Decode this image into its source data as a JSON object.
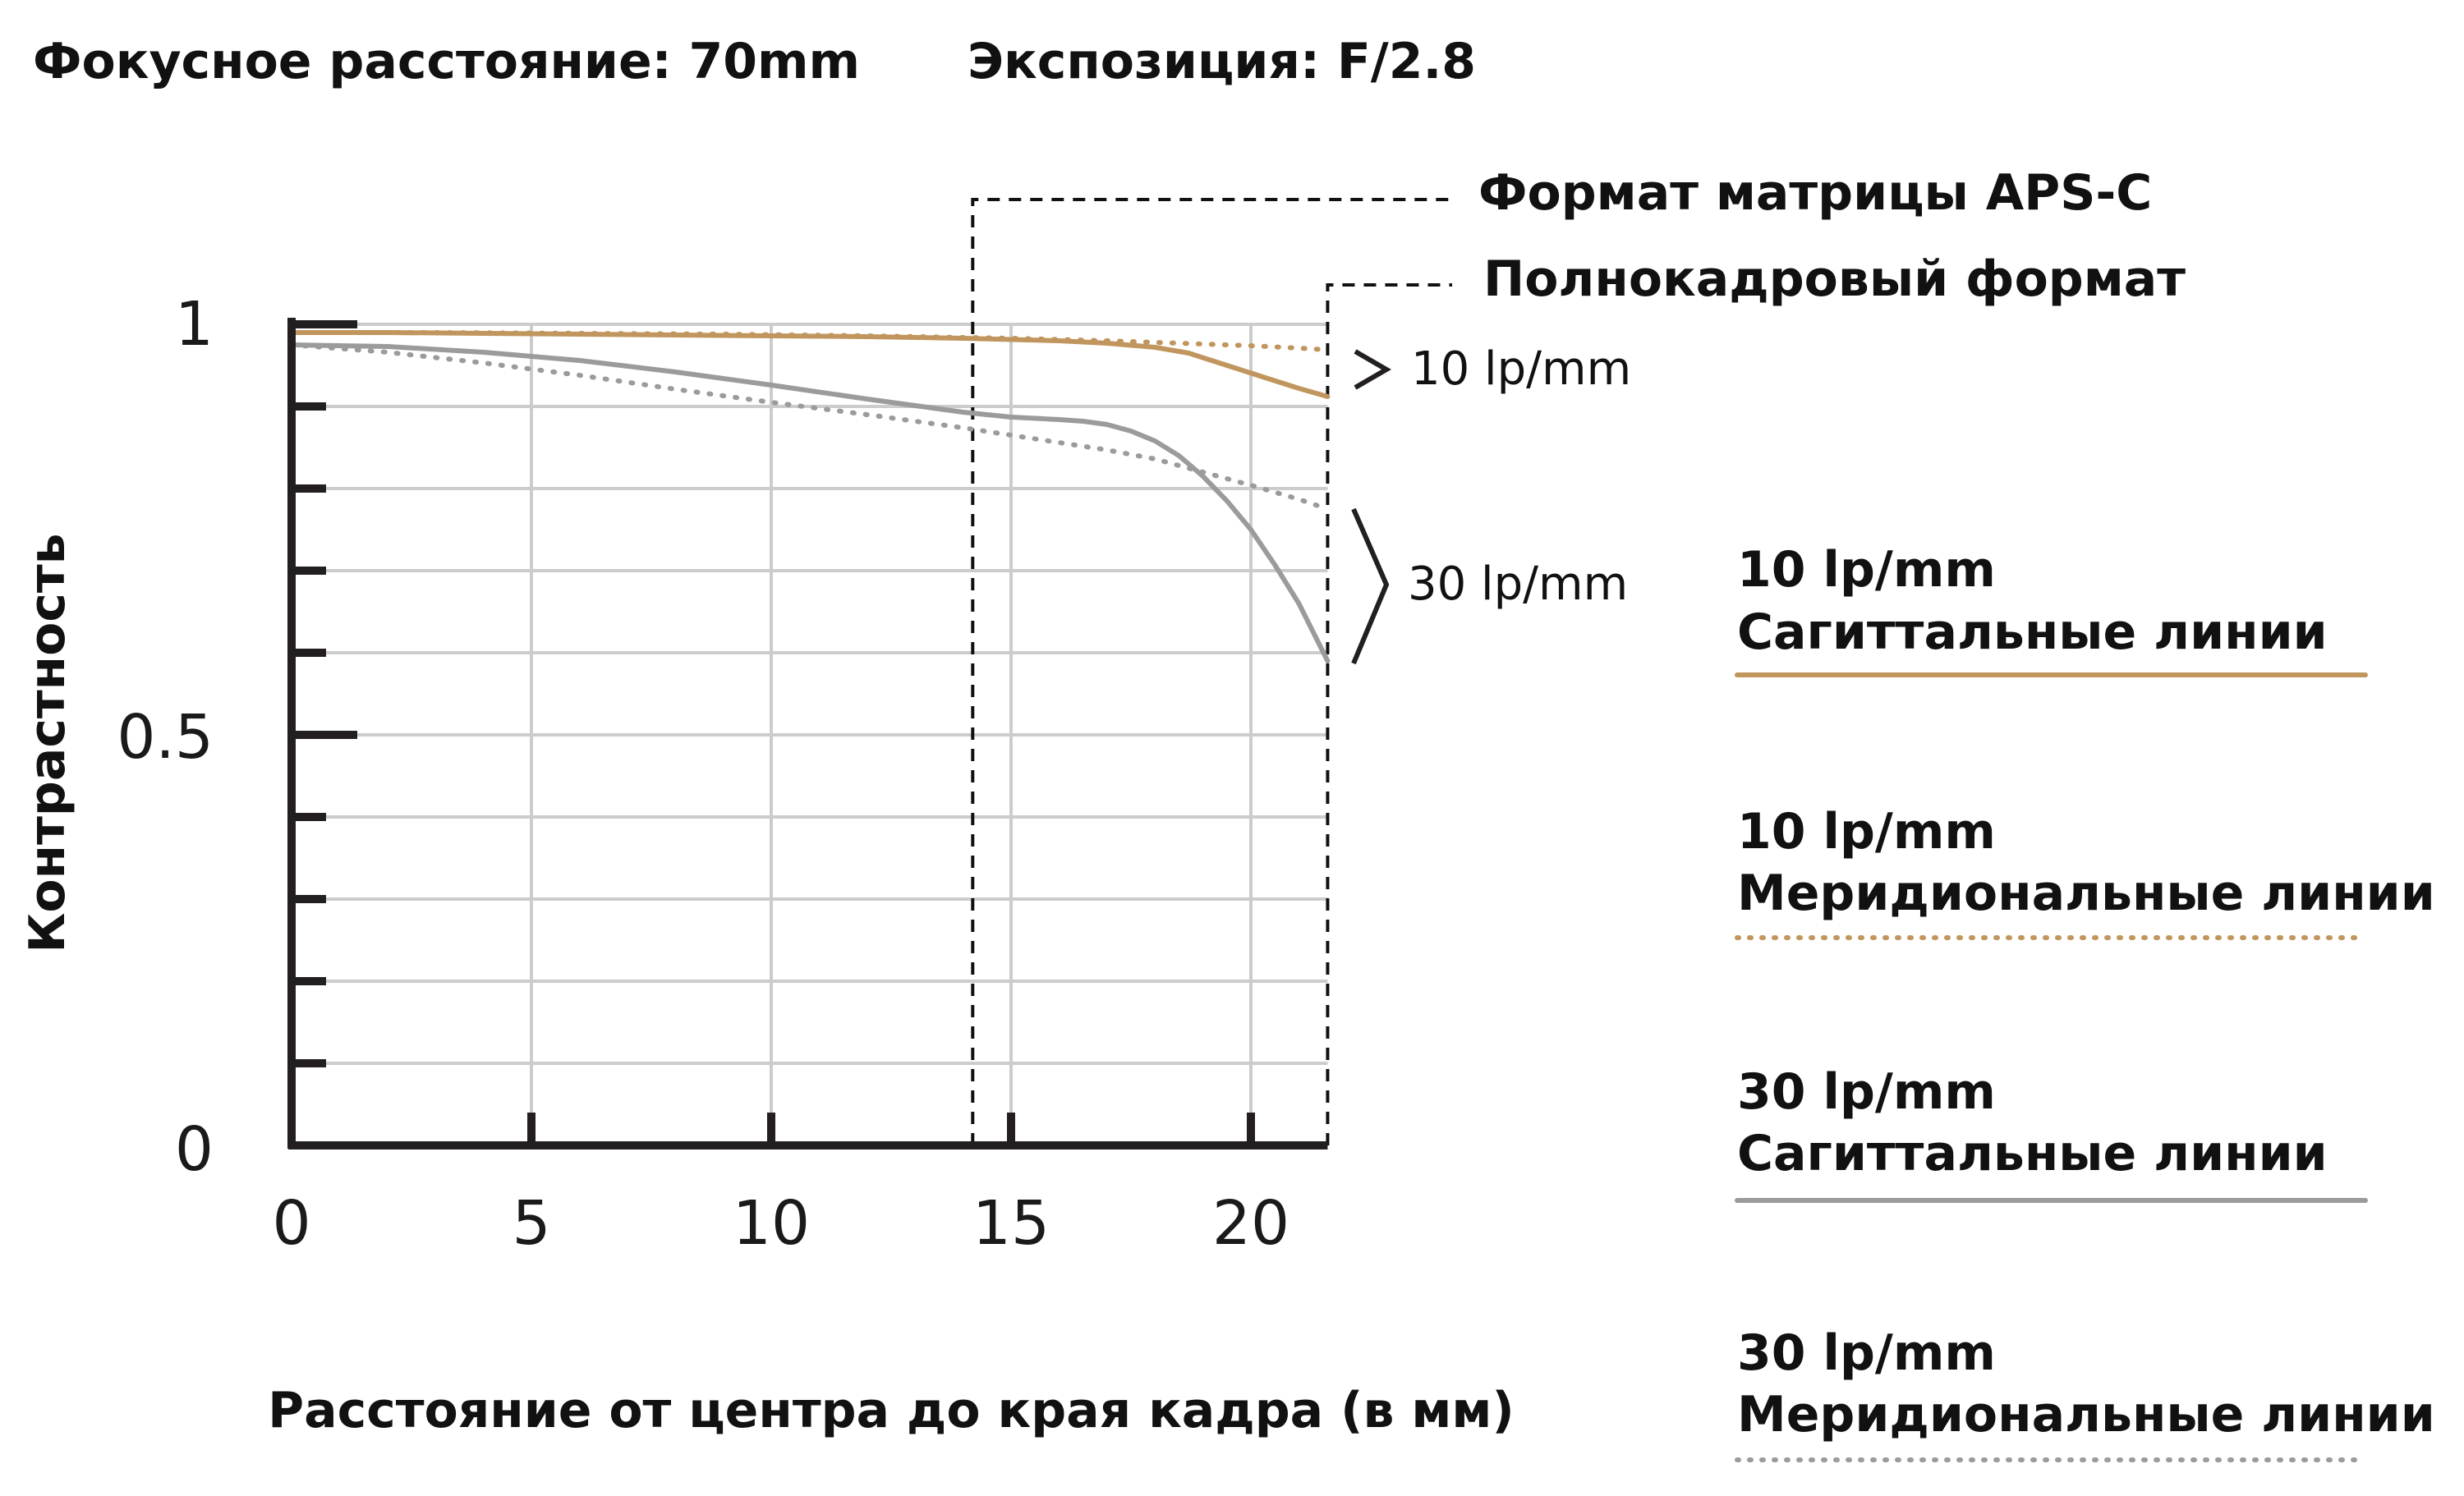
{
  "header": {
    "focal": "Фокусное расстояние: 70mm",
    "aperture": "Экспозиция: F/2.8"
  },
  "chart_data": {
    "type": "line",
    "xlabel": "Расстояние от центра до края кадра (в мм)",
    "ylabel": "Контрастность",
    "xlim": [
      0,
      21.6
    ],
    "ylim": [
      0,
      1
    ],
    "x_ticks": [
      "0",
      "5",
      "10",
      "15",
      "20"
    ],
    "y_ticks": [
      "0",
      "0.5",
      "1"
    ],
    "grid": true,
    "format_markers": [
      {
        "label": "Формат матрицы APS-C",
        "x": 14.2
      },
      {
        "label": "Полнокадровый формат",
        "x": 21.6
      }
    ],
    "frequency_labels": [
      "10 lp/mm",
      "30 lp/mm"
    ],
    "series": [
      {
        "name": "10 lp/mm Сагиттальные линии",
        "color": "#c0965e",
        "style": "solid",
        "x": [
          0,
          2,
          4,
          6,
          8,
          10,
          12,
          14,
          16,
          17,
          18,
          18.7,
          19.5,
          20.3,
          21,
          21.6
        ],
        "y": [
          0.99,
          0.99,
          0.989,
          0.988,
          0.987,
          0.986,
          0.985,
          0.983,
          0.98,
          0.977,
          0.972,
          0.965,
          0.95,
          0.935,
          0.922,
          0.912
        ]
      },
      {
        "name": "10 lp/mm Меридиональные линии",
        "color": "#c0965e",
        "style": "dotted",
        "x": [
          0,
          3,
          6,
          9,
          12,
          15,
          17,
          19,
          20,
          21,
          21.6
        ],
        "y": [
          0.99,
          0.99,
          0.989,
          0.988,
          0.986,
          0.983,
          0.98,
          0.976,
          0.974,
          0.971,
          0.969
        ]
      },
      {
        "name": "30 lp/mm Сагиттальные линии",
        "color": "#9b9b9b",
        "style": "solid",
        "x": [
          0,
          2,
          4,
          6,
          8,
          10,
          12,
          13,
          14,
          15,
          16,
          16.5,
          17,
          17.5,
          18,
          18.5,
          19,
          19.5,
          20,
          20.5,
          21,
          21.6
        ],
        "y": [
          0.975,
          0.973,
          0.966,
          0.956,
          0.942,
          0.926,
          0.909,
          0.901,
          0.893,
          0.887,
          0.884,
          0.882,
          0.878,
          0.87,
          0.858,
          0.84,
          0.815,
          0.785,
          0.75,
          0.707,
          0.66,
          0.59
        ]
      },
      {
        "name": "30 lp/mm Меридиональные линии",
        "color": "#9b9b9b",
        "style": "dotted",
        "x": [
          0,
          2,
          4,
          6,
          8,
          10,
          12,
          13,
          14,
          15,
          16,
          17,
          18,
          19,
          20,
          21,
          21.6
        ],
        "y": [
          0.975,
          0.966,
          0.953,
          0.938,
          0.921,
          0.905,
          0.89,
          0.882,
          0.874,
          0.865,
          0.856,
          0.847,
          0.836,
          0.82,
          0.804,
          0.787,
          0.775
        ]
      }
    ]
  },
  "legend": [
    {
      "line1": "10 lp/mm",
      "line2": "Сагиттальные линии",
      "color": "#c0965e",
      "style": "solid"
    },
    {
      "line1": "10 lp/mm",
      "line2": " Меридиональные линии",
      "color": "#c0965e",
      "style": "dotted"
    },
    {
      "line1": "30 lp/mm",
      "line2": "Сагиттальные линии",
      "color": "#9b9b9b",
      "style": "solid"
    },
    {
      "line1": "30 lp/mm",
      "line2": "Меридиональные линии",
      "color": "#9b9b9b",
      "style": "dotted"
    }
  ]
}
